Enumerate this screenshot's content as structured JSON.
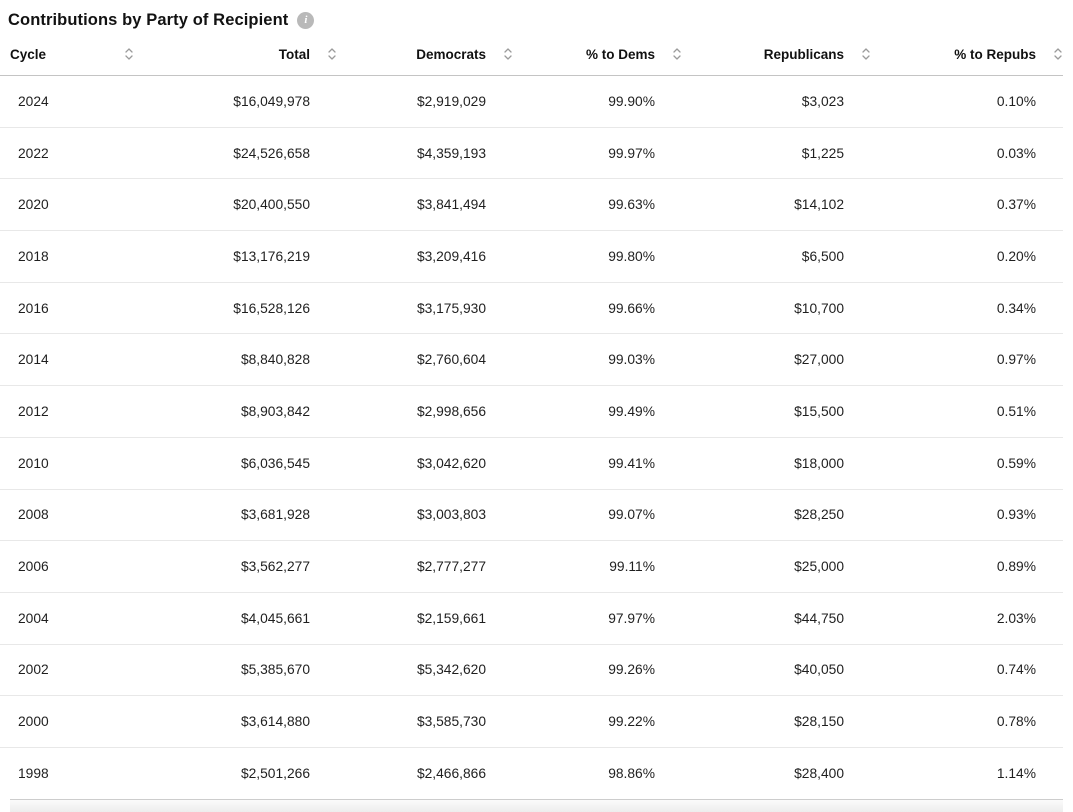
{
  "title": "Contributions by Party of Recipient",
  "info_icon": {
    "glyph": "i",
    "color": "#b9b9b9"
  },
  "colors": {
    "text": "#1f1f1f",
    "header_border": "#c4c4c4",
    "row_border": "#e8e8e8",
    "sort_icon": "#9b9b9b"
  },
  "table": {
    "headers": [
      {
        "label": "Cycle"
      },
      {
        "label": "Total"
      },
      {
        "label": "Democrats"
      },
      {
        "label": "% to Dems"
      },
      {
        "label": "Republicans"
      },
      {
        "label": "% to Repubs"
      }
    ],
    "rows": [
      {
        "cycle": "2024",
        "total": "$16,049,978",
        "democrats": "$2,919,029",
        "pct_dems": "99.90%",
        "republicans": "$3,023",
        "pct_repubs": "0.10%"
      },
      {
        "cycle": "2022",
        "total": "$24,526,658",
        "democrats": "$4,359,193",
        "pct_dems": "99.97%",
        "republicans": "$1,225",
        "pct_repubs": "0.03%"
      },
      {
        "cycle": "2020",
        "total": "$20,400,550",
        "democrats": "$3,841,494",
        "pct_dems": "99.63%",
        "republicans": "$14,102",
        "pct_repubs": "0.37%"
      },
      {
        "cycle": "2018",
        "total": "$13,176,219",
        "democrats": "$3,209,416",
        "pct_dems": "99.80%",
        "republicans": "$6,500",
        "pct_repubs": "0.20%"
      },
      {
        "cycle": "2016",
        "total": "$16,528,126",
        "democrats": "$3,175,930",
        "pct_dems": "99.66%",
        "republicans": "$10,700",
        "pct_repubs": "0.34%"
      },
      {
        "cycle": "2014",
        "total": "$8,840,828",
        "democrats": "$2,760,604",
        "pct_dems": "99.03%",
        "republicans": "$27,000",
        "pct_repubs": "0.97%"
      },
      {
        "cycle": "2012",
        "total": "$8,903,842",
        "democrats": "$2,998,656",
        "pct_dems": "99.49%",
        "republicans": "$15,500",
        "pct_repubs": "0.51%"
      },
      {
        "cycle": "2010",
        "total": "$6,036,545",
        "democrats": "$3,042,620",
        "pct_dems": "99.41%",
        "republicans": "$18,000",
        "pct_repubs": "0.59%"
      },
      {
        "cycle": "2008",
        "total": "$3,681,928",
        "democrats": "$3,003,803",
        "pct_dems": "99.07%",
        "republicans": "$28,250",
        "pct_repubs": "0.93%"
      },
      {
        "cycle": "2006",
        "total": "$3,562,277",
        "democrats": "$2,777,277",
        "pct_dems": "99.11%",
        "republicans": "$25,000",
        "pct_repubs": "0.89%"
      },
      {
        "cycle": "2004",
        "total": "$4,045,661",
        "democrats": "$2,159,661",
        "pct_dems": "97.97%",
        "republicans": "$44,750",
        "pct_repubs": "2.03%"
      },
      {
        "cycle": "2002",
        "total": "$5,385,670",
        "democrats": "$5,342,620",
        "pct_dems": "99.26%",
        "republicans": "$40,050",
        "pct_repubs": "0.74%"
      },
      {
        "cycle": "2000",
        "total": "$3,614,880",
        "democrats": "$3,585,730",
        "pct_dems": "99.22%",
        "republicans": "$28,150",
        "pct_repubs": "0.78%"
      },
      {
        "cycle": "1998",
        "total": "$2,501,266",
        "democrats": "$2,466,866",
        "pct_dems": "98.86%",
        "republicans": "$28,400",
        "pct_repubs": "1.14%"
      }
    ]
  }
}
